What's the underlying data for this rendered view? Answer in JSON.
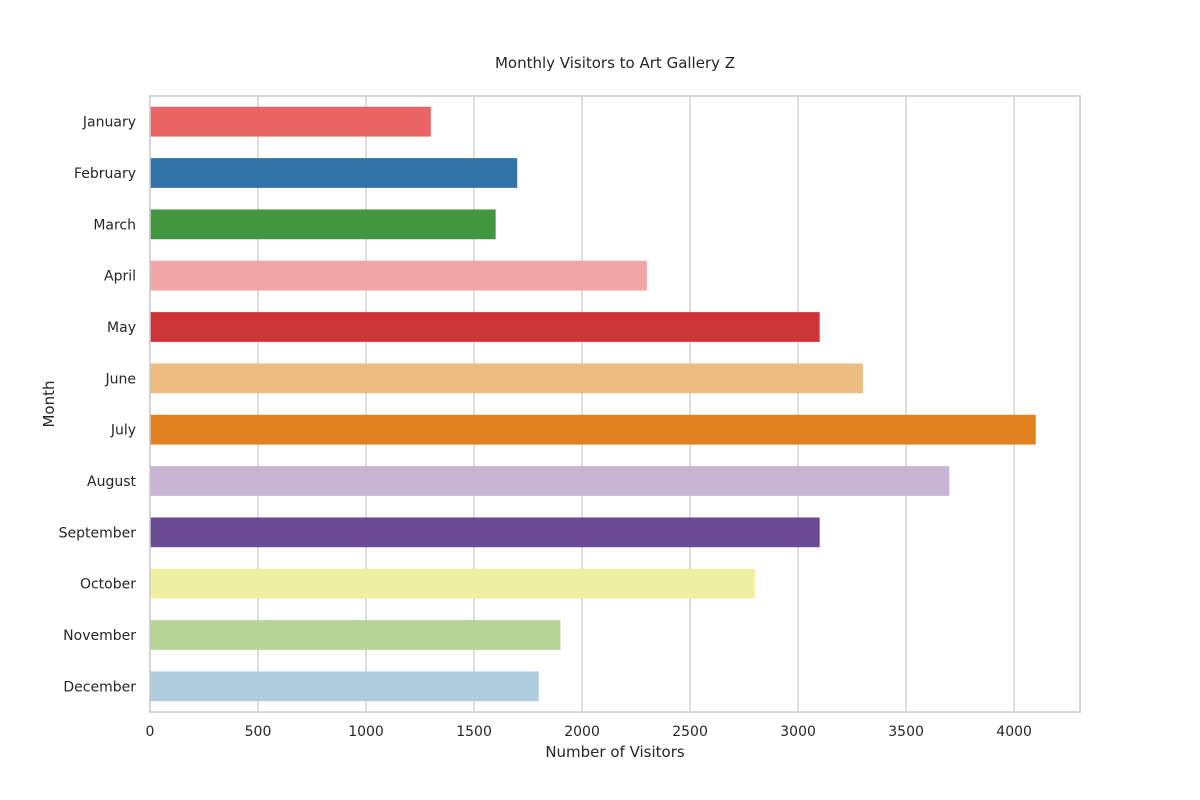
{
  "chart_data": {
    "type": "bar",
    "orientation": "horizontal",
    "title": "Monthly Visitors to Art Gallery Z",
    "xlabel": "Number of Visitors",
    "ylabel": "Month",
    "categories": [
      "January",
      "February",
      "March",
      "April",
      "May",
      "June",
      "July",
      "August",
      "September",
      "October",
      "November",
      "December"
    ],
    "values": [
      1300,
      1700,
      1600,
      2300,
      3100,
      3300,
      4100,
      3700,
      3100,
      2800,
      1900,
      1800
    ],
    "colors": [
      "#e96465",
      "#3174a5",
      "#42963f",
      "#f0a6a7",
      "#cc3437",
      "#ecbc80",
      "#e0801f",
      "#c8b5d3",
      "#6b4b93",
      "#f0f0a3",
      "#b5d495",
      "#b0cde0"
    ],
    "xticks": [
      0,
      500,
      1000,
      1500,
      2000,
      2500,
      3000,
      3500,
      4000
    ],
    "xlim": [
      0,
      4305
    ],
    "grid": true,
    "grid_color": "#cccccc",
    "spine_color": "#cccccc"
  }
}
